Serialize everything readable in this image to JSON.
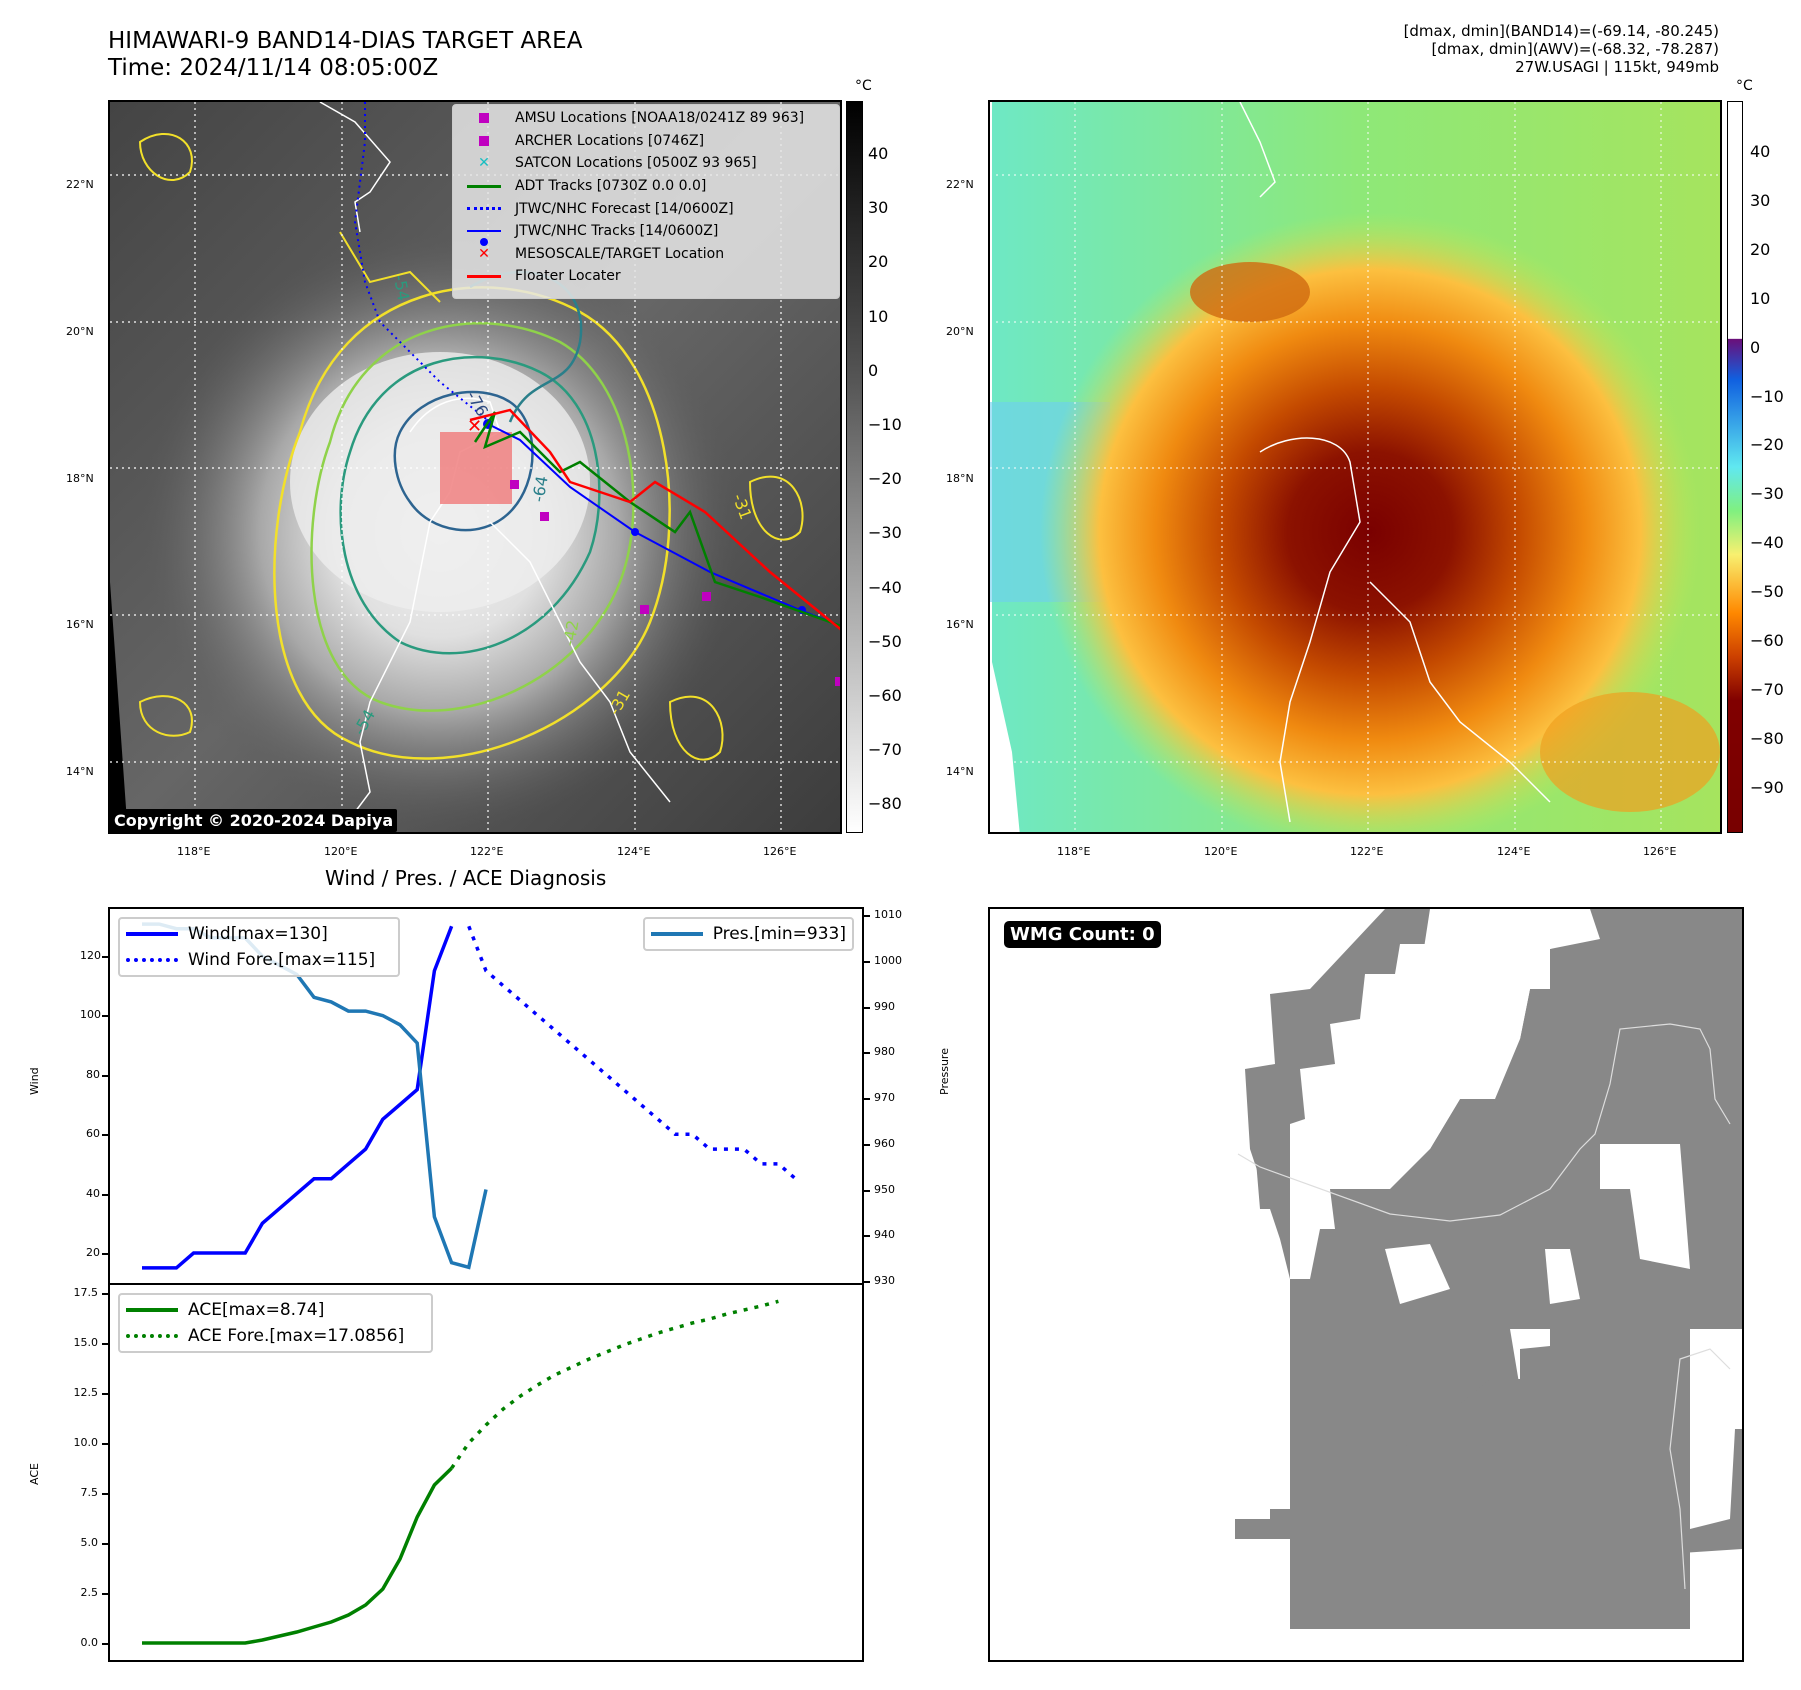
{
  "header": {
    "title_line1": "HIMAWARI-9 BAND14-DIAS TARGET AREA",
    "title_line2": "Time: 2024/11/14 08:05:00Z",
    "info_line1": "[dmax, dmin](BAND14)=(-69.14, -80.245)",
    "info_line2": "[dmax, dmin](AWV)=(-68.32, -78.287)",
    "info_line3": "27W.USAGI | 115kt, 949mb"
  },
  "map_left": {
    "copyright": "Copyright © 2020-2024 Dapiya",
    "lat_ticks": [
      "22°N",
      "20°N",
      "18°N",
      "16°N",
      "14°N"
    ],
    "lon_ticks": [
      "118°E",
      "120°E",
      "122°E",
      "124°E",
      "126°E"
    ],
    "contour_labels": [
      "-54",
      "-76",
      "-64",
      "-31",
      "-54",
      "-31",
      "-42"
    ],
    "legend": [
      {
        "label": "AMSU Locations [NOAA18/0241Z 89 963]",
        "symbol": "square",
        "color": "#c000c0"
      },
      {
        "label": "ARCHER Locations [0746Z]",
        "symbol": "square",
        "color": "#c000c0"
      },
      {
        "label": "SATCON Locations [0500Z 93 965]",
        "symbol": "x",
        "color": "#17bec2"
      },
      {
        "label": "ADT Tracks [0730Z 0.0 0.0]",
        "symbol": "line",
        "color": "#008000"
      },
      {
        "label": "JTWC/NHC Forecast [14/0600Z]",
        "symbol": "dotted",
        "color": "#0000ff"
      },
      {
        "label": "JTWC/NHC Tracks [14/0600Z]",
        "symbol": "line-dot",
        "color": "#0000ff"
      },
      {
        "label": "MESOSCALE/TARGET Location",
        "symbol": "x",
        "color": "#ff0000"
      },
      {
        "label": "Floater Locater",
        "symbol": "line",
        "color": "#ff0000"
      }
    ],
    "colorbar": {
      "unit": "°C",
      "ticks": [
        "40",
        "30",
        "20",
        "10",
        "0",
        "−10",
        "−20",
        "−30",
        "−40",
        "−50",
        "−60",
        "−70",
        "−80"
      ]
    }
  },
  "map_right": {
    "lat_ticks": [
      "22°N",
      "20°N",
      "18°N",
      "16°N",
      "14°N"
    ],
    "lon_ticks": [
      "118°E",
      "120°E",
      "122°E",
      "124°E",
      "126°E"
    ],
    "colorbar": {
      "unit": "°C",
      "ticks": [
        "40",
        "30",
        "20",
        "10",
        "0",
        "−10",
        "−20",
        "−30",
        "−40",
        "−50",
        "−60",
        "−70",
        "−80",
        "−90"
      ]
    }
  },
  "wmg": {
    "label": "WMG Count: 0"
  },
  "chart_data": [
    {
      "type": "line",
      "title": "Wind / Pres. / ACE Diagnosis",
      "ylabel": "Wind",
      "y2label": "Pressure",
      "ylim": [
        14,
        133
      ],
      "y2lim": [
        930,
        1011
      ],
      "yticks": [
        "20",
        "40",
        "60",
        "80",
        "100",
        "120"
      ],
      "y2ticks": [
        "930",
        "940",
        "950",
        "960",
        "970",
        "980",
        "990",
        "1000",
        "1010"
      ],
      "legend_left": [
        "Wind[max=130]",
        "Wind Fore.[max=115]"
      ],
      "legend_right": [
        "Pres.[min=933]"
      ],
      "series": [
        {
          "name": "Wind",
          "color": "#0000ff",
          "style": "solid",
          "x": [
            0,
            1,
            2,
            3,
            4,
            5,
            6,
            7,
            8,
            9,
            10,
            11,
            12,
            13,
            14,
            15,
            16,
            17,
            18
          ],
          "values": [
            15,
            15,
            15,
            20,
            20,
            20,
            20,
            30,
            35,
            40,
            45,
            45,
            50,
            55,
            65,
            70,
            75,
            115,
            130
          ]
        },
        {
          "name": "Wind Fore.",
          "color": "#0000ff",
          "style": "dotted",
          "x": [
            19,
            20,
            21,
            22,
            23,
            24,
            25,
            26,
            27,
            28,
            29,
            30,
            31,
            32,
            33,
            34,
            35,
            36,
            37,
            38
          ],
          "values": [
            130,
            115,
            110,
            105,
            100,
            95,
            90,
            85,
            80,
            75,
            70,
            65,
            60,
            60,
            55,
            55,
            55,
            50,
            50,
            45
          ],
          "xscale_offset": 0
        },
        {
          "name": "Pres.",
          "color": "#1f77b4",
          "style": "solid",
          "axis": "y2",
          "x": [
            0,
            1,
            2,
            3,
            4,
            5,
            6,
            7,
            8,
            9,
            10,
            11,
            12,
            13,
            14,
            15,
            16,
            17,
            18,
            19,
            20
          ],
          "values": [
            1008,
            1008,
            1007,
            1007,
            1005,
            1005,
            1005,
            1001,
            999,
            997,
            992,
            991,
            989,
            989,
            988,
            986,
            982,
            944,
            934,
            933,
            950
          ]
        }
      ]
    },
    {
      "type": "line",
      "ylabel": "ACE",
      "ylim": [
        -0.8,
        17.5
      ],
      "yticks": [
        "0.0",
        "2.5",
        "5.0",
        "7.5",
        "10.0",
        "12.5",
        "15.0",
        "17.5"
      ],
      "legend": [
        "ACE[max=8.74]",
        "ACE Fore.[max=17.0856]"
      ],
      "series": [
        {
          "name": "ACE",
          "color": "#008000",
          "style": "solid",
          "values": [
            0,
            0,
            0,
            0,
            0,
            0,
            0,
            0.15,
            0.35,
            0.55,
            0.8,
            1.05,
            1.4,
            1.9,
            2.7,
            4.2,
            6.3,
            7.9,
            8.74
          ]
        },
        {
          "name": "ACE Fore.",
          "color": "#008000",
          "style": "dotted",
          "values": [
            8.74,
            10.0,
            10.9,
            11.7,
            12.35,
            12.9,
            13.4,
            13.8,
            14.2,
            14.55,
            14.9,
            15.2,
            15.5,
            15.75,
            16.0,
            16.2,
            16.45,
            16.65,
            16.85,
            17.0856
          ]
        }
      ]
    }
  ]
}
